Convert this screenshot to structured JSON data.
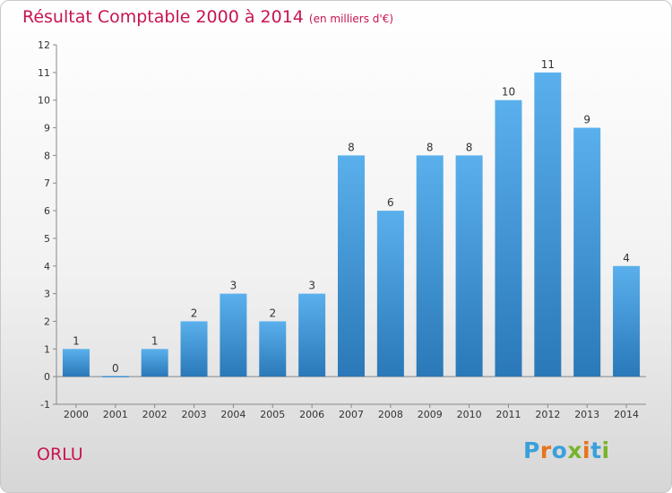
{
  "title": "Résultat Comptable 2000 à 2014",
  "subtitle": "(en milliers d'€)",
  "commune": "ORLU",
  "logo": {
    "letters": [
      "P",
      "r",
      "o",
      "x",
      "i",
      "t",
      "i"
    ]
  },
  "colors": {
    "accent": "#c8144e",
    "bar_top": "#5ab0ec",
    "bar_bottom": "#2a78b8",
    "logo": [
      "#3aa0dc",
      "#e8731a",
      "#3aa0dc",
      "#78b42a",
      "#e8731a",
      "#3aa0dc",
      "#78b42a"
    ]
  },
  "chart_data": {
    "type": "bar",
    "title": "Résultat Comptable 2000 à 2014",
    "ylabel": "en milliers d'€",
    "categories": [
      "2000",
      "2001",
      "2002",
      "2003",
      "2004",
      "2005",
      "2006",
      "2007",
      "2008",
      "2009",
      "2010",
      "2011",
      "2012",
      "2013",
      "2014"
    ],
    "values": [
      1,
      0,
      1,
      2,
      3,
      2,
      3,
      8,
      6,
      8,
      8,
      10,
      11,
      9,
      4
    ],
    "ylim": [
      -1,
      12
    ],
    "yticks": [
      -1,
      0,
      1,
      2,
      3,
      4,
      5,
      6,
      7,
      8,
      9,
      10,
      11,
      12
    ],
    "grid": false,
    "legend": false
  }
}
